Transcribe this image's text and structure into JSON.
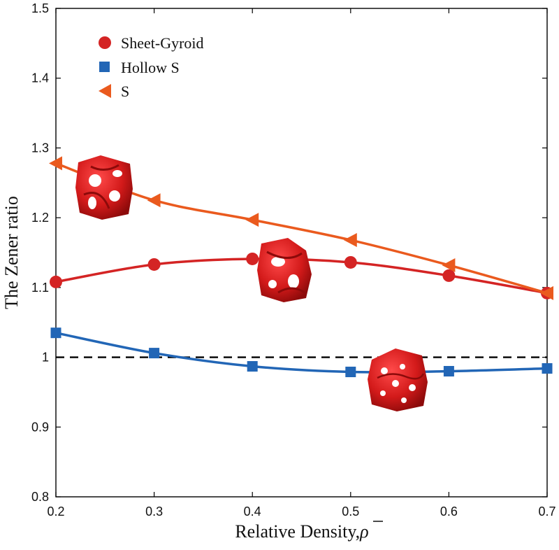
{
  "chart_data": {
    "type": "line",
    "x": [
      0.2,
      0.3,
      0.4,
      0.5,
      0.6,
      0.7
    ],
    "xlabel": "Relative Density,",
    "xlabel_symbol": "ρ",
    "ylabel": "The Zener ratio",
    "xlim": [
      0.2,
      0.7
    ],
    "ylim": [
      0.8,
      1.5
    ],
    "xticks": [
      "0.2",
      "0.3",
      "0.4",
      "0.5",
      "0.6",
      "0.7"
    ],
    "yticks": [
      "0.8",
      "0.9",
      "1",
      "1.1",
      "1.2",
      "1.3",
      "1.4",
      "1.5"
    ],
    "reference_line": {
      "y": 1.0,
      "style": "dashed",
      "color": "#000000"
    },
    "legend_position": "top-left",
    "series": [
      {
        "name": "Sheet-Gyroid",
        "marker": "circle",
        "color": "#d42424",
        "values": [
          1.108,
          1.133,
          1.141,
          1.136,
          1.117,
          1.092
        ]
      },
      {
        "name": "Hollow S",
        "marker": "square",
        "color": "#2266b6",
        "values": [
          1.035,
          1.006,
          0.987,
          0.979,
          0.98,
          0.984
        ]
      },
      {
        "name": "S",
        "marker": "triangle-left",
        "color": "#ea5a1e",
        "values": [
          1.278,
          1.225,
          1.197,
          1.168,
          1.132,
          1.092
        ]
      }
    ],
    "insets": [
      {
        "name": "S-structure",
        "x": 0.25,
        "y": 1.25
      },
      {
        "name": "Sheet-Gyroid-structure",
        "x": 0.43,
        "y": 1.125
      },
      {
        "name": "Hollow-S-structure",
        "x": 0.55,
        "y": 0.97
      }
    ]
  }
}
